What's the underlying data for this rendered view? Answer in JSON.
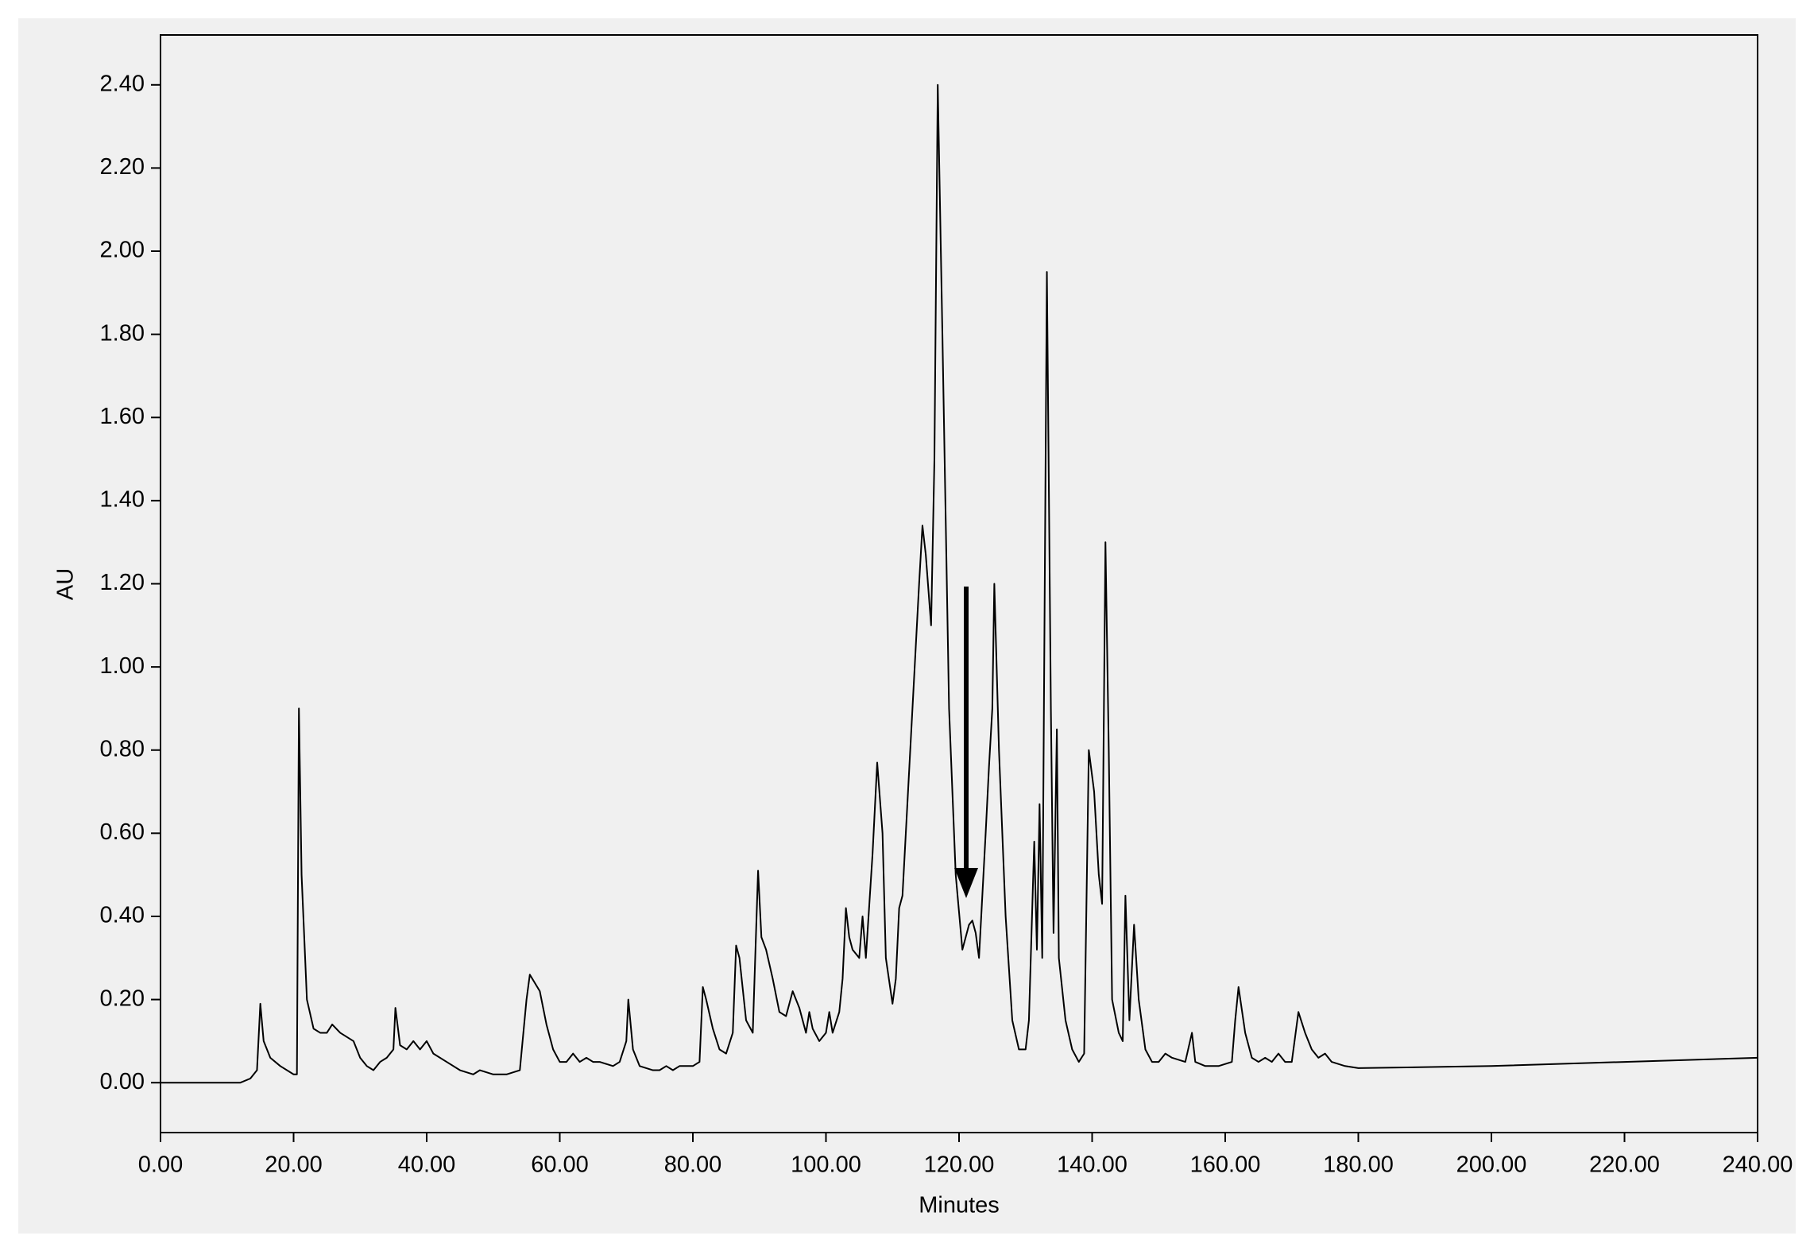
{
  "chart_data": {
    "type": "line",
    "x_label": "Minutes",
    "y_label": "AU",
    "color": "#000000",
    "xlim": [
      0,
      240
    ],
    "ylim": [
      -0.12,
      2.52
    ],
    "xticks": [
      {
        "value": 0,
        "label": "0.00"
      },
      {
        "value": 20,
        "label": "20.00"
      },
      {
        "value": 40,
        "label": "40.00"
      },
      {
        "value": 60,
        "label": "60.00"
      },
      {
        "value": 80,
        "label": "80.00"
      },
      {
        "value": 100,
        "label": "100.00"
      },
      {
        "value": 120,
        "label": "120.00"
      },
      {
        "value": 140,
        "label": "140.00"
      },
      {
        "value": 160,
        "label": "160.00"
      },
      {
        "value": 180,
        "label": "180.00"
      },
      {
        "value": 200,
        "label": "200.00"
      },
      {
        "value": 220,
        "label": "220.00"
      },
      {
        "value": 240,
        "label": "240.00"
      }
    ],
    "yticks": [
      {
        "value": 0,
        "label": "0.00"
      },
      {
        "value": 0.2,
        "label": "0.20"
      },
      {
        "value": 0.4,
        "label": "0.40"
      },
      {
        "value": 0.6,
        "label": "0.60"
      },
      {
        "value": 0.8,
        "label": "0.80"
      },
      {
        "value": 1,
        "label": "1.00"
      },
      {
        "value": 1.2,
        "label": "1.20"
      },
      {
        "value": 1.4,
        "label": "1.40"
      },
      {
        "value": 1.6,
        "label": "1.60"
      },
      {
        "value": 1.8,
        "label": "1.80"
      },
      {
        "value": 2,
        "label": "2.00"
      },
      {
        "value": 2.2,
        "label": "2.20"
      },
      {
        "value": 2.4,
        "label": "2.40"
      }
    ],
    "x": [
      0,
      12,
      13.5,
      14.5,
      15,
      15.5,
      16.5,
      18,
      20,
      20.5,
      20.8,
      21.2,
      22,
      23,
      24,
      25,
      25.8,
      27,
      29,
      30,
      31,
      32,
      33,
      34,
      35,
      35.3,
      36,
      37,
      38,
      39,
      40,
      41,
      43,
      45,
      47,
      48,
      50,
      52,
      54,
      55,
      55.5,
      57,
      58,
      59,
      60,
      61,
      62,
      63,
      64,
      65,
      66,
      68,
      69,
      70,
      70.3,
      71,
      72,
      74,
      75,
      76,
      77,
      78,
      80,
      81,
      81.5,
      82,
      83,
      84,
      85,
      86,
      86.5,
      87,
      88,
      89,
      89.8,
      90.3,
      91,
      92,
      93,
      94,
      95,
      96,
      97,
      97.5,
      98,
      99,
      100,
      100.5,
      101,
      102,
      102.5,
      103,
      103.5,
      104,
      105,
      105.5,
      106,
      107,
      107.7,
      108.5,
      109,
      110,
      110.5,
      111,
      111.5,
      112,
      113,
      114,
      114.5,
      115,
      115.8,
      116.3,
      116.8,
      117.5,
      118.5,
      119.5,
      120.5,
      121.5,
      122,
      122.5,
      123,
      124,
      124.5,
      125,
      125.3,
      126,
      127,
      128,
      129,
      130,
      130.5,
      131.3,
      131.7,
      132.1,
      132.5,
      133.2,
      133.8,
      134.2,
      134.7,
      135,
      136,
      137,
      138,
      138.8,
      139.5,
      140.3,
      141,
      141.5,
      142,
      142.5,
      143,
      144,
      144.6,
      145,
      145.6,
      146.3,
      147,
      148,
      149,
      150,
      151,
      152,
      154,
      155,
      155.5,
      157,
      159,
      161,
      161.5,
      162,
      163,
      164,
      165,
      166,
      167,
      168,
      169,
      170,
      171,
      172,
      173,
      174,
      175,
      176,
      178,
      180,
      200,
      220,
      240
    ],
    "values": [
      0,
      0,
      0.01,
      0.03,
      0.19,
      0.1,
      0.06,
      0.04,
      0.02,
      0.02,
      0.9,
      0.5,
      0.2,
      0.13,
      0.12,
      0.12,
      0.14,
      0.12,
      0.1,
      0.06,
      0.04,
      0.03,
      0.05,
      0.06,
      0.08,
      0.18,
      0.09,
      0.08,
      0.1,
      0.08,
      0.1,
      0.07,
      0.05,
      0.03,
      0.02,
      0.03,
      0.02,
      0.02,
      0.03,
      0.2,
      0.26,
      0.22,
      0.14,
      0.08,
      0.05,
      0.05,
      0.07,
      0.05,
      0.06,
      0.05,
      0.05,
      0.04,
      0.05,
      0.1,
      0.2,
      0.08,
      0.04,
      0.03,
      0.03,
      0.04,
      0.03,
      0.04,
      0.04,
      0.05,
      0.23,
      0.2,
      0.13,
      0.08,
      0.07,
      0.12,
      0.33,
      0.3,
      0.15,
      0.12,
      0.51,
      0.35,
      0.32,
      0.25,
      0.17,
      0.16,
      0.22,
      0.18,
      0.12,
      0.17,
      0.13,
      0.1,
      0.12,
      0.17,
      0.12,
      0.17,
      0.25,
      0.42,
      0.35,
      0.32,
      0.3,
      0.4,
      0.3,
      0.55,
      0.77,
      0.6,
      0.3,
      0.19,
      0.25,
      0.42,
      0.45,
      0.6,
      0.9,
      1.2,
      1.34,
      1.27,
      1.1,
      1.5,
      2.4,
      1.8,
      0.9,
      0.5,
      0.32,
      0.38,
      0.39,
      0.36,
      0.3,
      0.6,
      0.76,
      0.9,
      1.2,
      0.8,
      0.4,
      0.15,
      0.08,
      0.08,
      0.15,
      0.58,
      0.32,
      0.67,
      0.3,
      1.95,
      0.9,
      0.36,
      0.85,
      0.3,
      0.15,
      0.08,
      0.05,
      0.07,
      0.8,
      0.7,
      0.5,
      0.43,
      1.3,
      0.8,
      0.2,
      0.12,
      0.1,
      0.45,
      0.15,
      0.38,
      0.2,
      0.08,
      0.05,
      0.05,
      0.07,
      0.06,
      0.05,
      0.12,
      0.05,
      0.04,
      0.04,
      0.05,
      0.15,
      0.23,
      0.12,
      0.06,
      0.05,
      0.06,
      0.05,
      0.07,
      0.05,
      0.05,
      0.17,
      0.12,
      0.08,
      0.06,
      0.07,
      0.05,
      0.04,
      0.035,
      0.04,
      0.05,
      0.06
    ]
  }
}
